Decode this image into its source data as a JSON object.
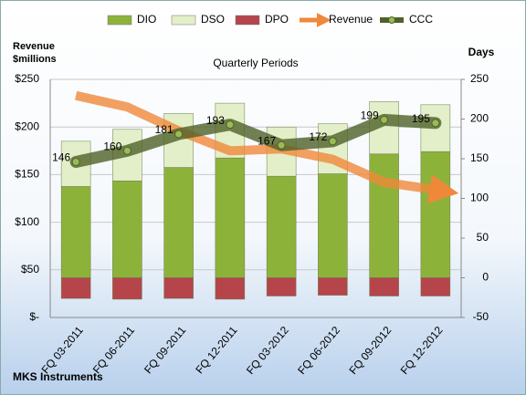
{
  "chart_data": {
    "type": "combo",
    "title": "Quarterly Periods",
    "ylabel": "Revenue $millions",
    "y2label": "Days",
    "footer": "MKS Instruments",
    "categories": [
      "FQ 03-2011",
      "FQ 06-2011",
      "FQ 09-2011",
      "FQ 12-2011",
      "FQ 03-2012",
      "FQ 06-2012",
      "FQ 09-2012",
      "FQ 12-2012"
    ],
    "series": [
      {
        "name": "DIO",
        "kind": "bar",
        "axis": "y2",
        "color": "#8db23a",
        "values": [
          115,
          122,
          139,
          151,
          128,
          131,
          156,
          159
        ]
      },
      {
        "name": "DSO",
        "kind": "bar",
        "axis": "y2",
        "color": "#e3efc8",
        "values": [
          57,
          65,
          68,
          69,
          62,
          63,
          66,
          59
        ]
      },
      {
        "name": "DPO",
        "kind": "bar",
        "axis": "y2",
        "color": "#b5454a",
        "values": [
          -26,
          -27,
          -26,
          -27,
          -23,
          -22,
          -23,
          -23
        ]
      },
      {
        "name": "Revenue",
        "kind": "arrow",
        "axis": "y",
        "color": "#f0883a",
        "values": [
          233,
          221,
          196,
          175,
          177,
          166,
          142,
          134
        ]
      },
      {
        "name": "CCC",
        "kind": "line",
        "axis": "y2",
        "color": "#4f6228",
        "values": [
          146,
          160,
          181,
          193,
          167,
          172,
          199,
          195
        ]
      }
    ],
    "ylim": [
      0,
      250
    ],
    "yticks": [
      {
        "value": 0,
        "label": "$-"
      },
      {
        "value": 50,
        "label": "$50"
      },
      {
        "value": 100,
        "label": "$100"
      },
      {
        "value": 150,
        "label": "$150"
      },
      {
        "value": 200,
        "label": "$200"
      },
      {
        "value": 250,
        "label": "$250"
      }
    ],
    "y2lim": [
      -50,
      250
    ],
    "y2ticks": [
      -50,
      0,
      50,
      100,
      150,
      200,
      250
    ],
    "grid": true,
    "legend": "top"
  }
}
